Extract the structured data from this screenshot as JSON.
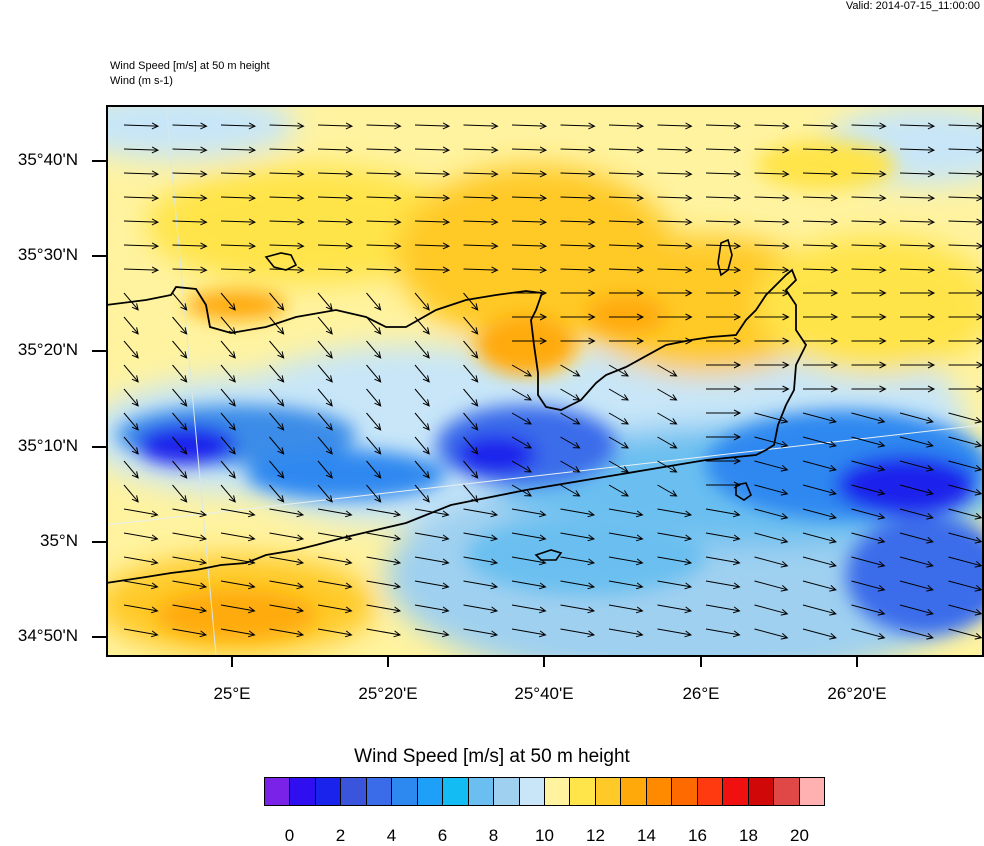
{
  "header": {
    "valid": "Valid: 2014-07-15_11:00:00",
    "title_line1": "Wind Speed [m/s] at 50 m height",
    "title_line2": "Wind   (m s-1)"
  },
  "axes": {
    "lat_labels": [
      "35°40'N",
      "35°30'N",
      "35°20'N",
      "35°10'N",
      "35°N",
      "34°50'N"
    ],
    "lon_labels": [
      "25°E",
      "25°20'E",
      "25°40'E",
      "26°E",
      "26°20'E"
    ]
  },
  "colorbar": {
    "title": "Wind Speed [m/s] at 50 m height",
    "tick_labels": [
      "0",
      "2",
      "4",
      "6",
      "8",
      "10",
      "12",
      "14",
      "16",
      "18",
      "20"
    ],
    "colors": [
      "#7b22e8",
      "#2f0ff0",
      "#1a23ec",
      "#3a55dc",
      "#3a6cea",
      "#2d88f0",
      "#1fa0f8",
      "#14bcf4",
      "#6bbff0",
      "#9fd0f0",
      "#c8e6f8",
      "#fff3a0",
      "#ffe44a",
      "#ffc928",
      "#ffaa0a",
      "#ff8a00",
      "#ff6a00",
      "#ff3a10",
      "#f01010",
      "#d00808",
      "#e04848",
      "#ffb0b0"
    ]
  },
  "legend_colors": {
    "coast": "#000000",
    "arrow": "#000000",
    "grid": "#e0e0e0"
  }
}
